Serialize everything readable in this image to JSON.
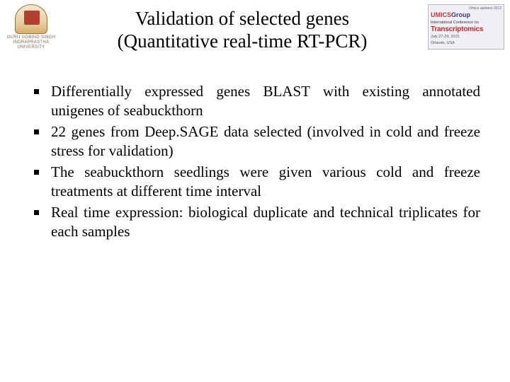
{
  "header": {
    "logo_left": {
      "line1": "GURU GOBIND SINGH",
      "line2": "INDRAPRASTHA",
      "line3": "UNIVERSITY"
    },
    "title_line1": "Validation of selected genes",
    "title_line2": "(Quantitative real-time RT-PCR)",
    "logo_right": {
      "top": "Omics updates 2013",
      "umics_prefix": "UMICS",
      "umics_suffix": "Group",
      "conf_line": "International Conference on",
      "trans": "Transcriptomics",
      "dates1": "July 27-29, 2015",
      "dates2": "Orlando, USA"
    }
  },
  "bullets": [
    "Differentially expressed genes BLAST with existing annotated unigenes of seabuckthorn",
    "22 genes from Deep.SAGE data selected (involved in cold and freeze stress for validation)",
    "The seabuckthorn seedlings were given various cold and freeze treatments at different time interval",
    "Real time expression: biological duplicate and technical triplicates for each samples"
  ],
  "colors": {
    "background": "#ffffff",
    "text": "#000000",
    "bullet": "#000000"
  }
}
